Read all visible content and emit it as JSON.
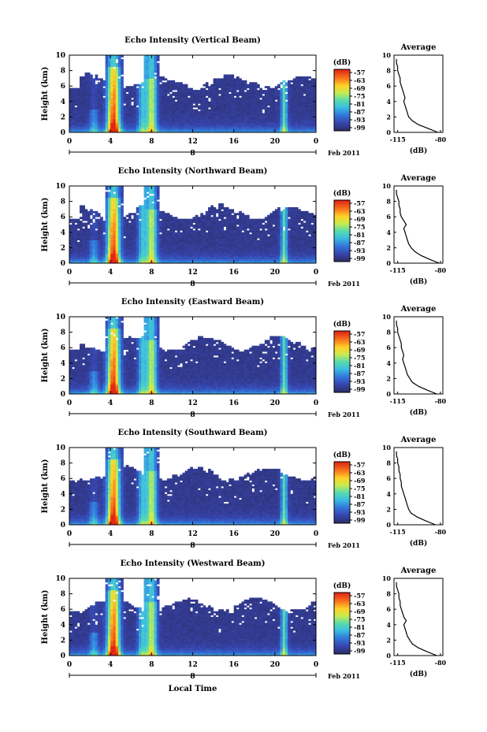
{
  "chart_data": [
    {
      "type": "heatmap",
      "title": "Echo Intensity (Vertical Beam)",
      "xlabel": "",
      "ylabel": "Height (km)",
      "x_ticks": [
        "0",
        "4",
        "8",
        "12",
        "16",
        "20",
        "0"
      ],
      "y_ticks": [
        "0",
        "2",
        "4",
        "6",
        "8",
        "10"
      ],
      "ylim": [
        0,
        10
      ],
      "date_row": [
        "8",
        "Feb 2011"
      ],
      "colorbar": {
        "unit": "(dB)",
        "ticks": [
          "-57",
          "-63",
          "-69",
          "-75",
          "-81",
          "-87",
          "-93",
          "-99"
        ]
      },
      "profile": {
        "title": "Average",
        "xlabel": "(dB)",
        "x_ticks": [
          "-115",
          "-80"
        ],
        "y_ticks": [
          "0",
          "2",
          "4",
          "6",
          "8",
          "10"
        ],
        "height_km": [
          0,
          0.5,
          1,
          1.5,
          2,
          2.5,
          3,
          3.5,
          4,
          4.5,
          5,
          5.5,
          6,
          6.5,
          7,
          7.5,
          8,
          8.5,
          9,
          9.5
        ],
        "values_db": [
          -82,
          -90,
          -98,
          -103,
          -106,
          -107,
          -108,
          -109,
          -110,
          -109,
          -110,
          -111,
          -112,
          -113,
          -113,
          -114,
          -115,
          -115,
          -116,
          -116
        ]
      }
    },
    {
      "type": "heatmap",
      "title": "Echo Intensity (Northward Beam)",
      "xlabel": "",
      "ylabel": "Height (km)",
      "x_ticks": [
        "0",
        "4",
        "8",
        "12",
        "16",
        "20",
        "0"
      ],
      "y_ticks": [
        "0",
        "2",
        "4",
        "6",
        "8",
        "10"
      ],
      "ylim": [
        0,
        10
      ],
      "date_row": [
        "8",
        "Feb 2011"
      ],
      "colorbar": {
        "unit": "(dB)",
        "ticks": [
          "-57",
          "-63",
          "-69",
          "-75",
          "-81",
          "-87",
          "-93",
          "-99"
        ]
      },
      "profile": {
        "title": "Average",
        "xlabel": "(dB)",
        "x_ticks": [
          "-115",
          "-80"
        ],
        "y_ticks": [
          "0",
          "2",
          "4",
          "6",
          "8",
          "10"
        ],
        "height_km": [
          0,
          0.5,
          1,
          1.5,
          2,
          2.5,
          3,
          3.5,
          4,
          4.5,
          5,
          5.5,
          6,
          6.5,
          7,
          7.5,
          8,
          8.5,
          9,
          9.5
        ],
        "values_db": [
          -81,
          -89,
          -96,
          -101,
          -104,
          -106,
          -107,
          -108,
          -109,
          -110,
          -108,
          -110,
          -112,
          -113,
          -113,
          -114,
          -114,
          -115,
          -116,
          -116
        ]
      }
    },
    {
      "type": "heatmap",
      "title": "Echo Intensity (Eastward Beam)",
      "xlabel": "",
      "ylabel": "Height (km)",
      "x_ticks": [
        "0",
        "4",
        "8",
        "12",
        "16",
        "20",
        "0"
      ],
      "y_ticks": [
        "0",
        "2",
        "4",
        "6",
        "8",
        "10"
      ],
      "ylim": [
        0,
        10
      ],
      "date_row": [
        "8",
        "Feb 2011"
      ],
      "colorbar": {
        "unit": "(dB)",
        "ticks": [
          "-57",
          "-63",
          "-69",
          "-75",
          "-81",
          "-87",
          "-93",
          "-99"
        ]
      },
      "profile": {
        "title": "Average",
        "xlabel": "(dB)",
        "x_ticks": [
          "-115",
          "-80"
        ],
        "y_ticks": [
          "0",
          "2",
          "4",
          "6",
          "8",
          "10"
        ],
        "height_km": [
          0,
          0.5,
          1,
          1.5,
          2,
          2.5,
          3,
          3.5,
          4,
          4.5,
          5,
          5.5,
          6,
          6.5,
          7,
          7.5,
          8,
          8.5,
          9,
          9.5
        ],
        "values_db": [
          -83,
          -91,
          -98,
          -103,
          -105,
          -107,
          -108,
          -109,
          -110,
          -111,
          -110,
          -111,
          -112,
          -112,
          -113,
          -114,
          -115,
          -115,
          -116,
          -116
        ]
      }
    },
    {
      "type": "heatmap",
      "title": "Echo Intensity (Southward Beam)",
      "xlabel": "",
      "ylabel": "Height (km)",
      "x_ticks": [
        "0",
        "4",
        "8",
        "12",
        "16",
        "20",
        "0"
      ],
      "y_ticks": [
        "0",
        "2",
        "4",
        "6",
        "8",
        "10"
      ],
      "ylim": [
        0,
        10
      ],
      "date_row": [
        "8",
        "Feb 2011"
      ],
      "colorbar": {
        "unit": "(dB)",
        "ticks": [
          "-57",
          "-63",
          "-69",
          "-75",
          "-81",
          "-87",
          "-93",
          "-99"
        ]
      },
      "profile": {
        "title": "Average",
        "xlabel": "(dB)",
        "x_ticks": [
          "-115",
          "-80"
        ],
        "y_ticks": [
          "0",
          "2",
          "4",
          "6",
          "8",
          "10"
        ],
        "height_km": [
          0,
          0.5,
          1,
          1.5,
          2,
          2.5,
          3,
          3.5,
          4,
          4.5,
          5,
          5.5,
          6,
          6.5,
          7,
          7.5,
          8,
          8.5,
          9,
          9.5
        ],
        "values_db": [
          -84,
          -92,
          -99,
          -104,
          -106,
          -107,
          -108,
          -109,
          -110,
          -111,
          -112,
          -112,
          -113,
          -113,
          -114,
          -114,
          -115,
          -115,
          -116,
          -116
        ]
      }
    },
    {
      "type": "heatmap",
      "title": "Echo Intensity (Westward Beam)",
      "xlabel": "Local Time",
      "ylabel": "Height (km)",
      "x_ticks": [
        "0",
        "4",
        "8",
        "12",
        "16",
        "20",
        "0"
      ],
      "y_ticks": [
        "0",
        "2",
        "4",
        "6",
        "8",
        "10"
      ],
      "ylim": [
        0,
        10
      ],
      "date_row": [
        "8",
        "Feb 2011"
      ],
      "colorbar": {
        "unit": "(dB)",
        "ticks": [
          "-57",
          "-63",
          "-69",
          "-75",
          "-81",
          "-87",
          "-93",
          "-99"
        ]
      },
      "profile": {
        "title": "Average",
        "xlabel": "(dB)",
        "x_ticks": [
          "-115",
          "-80"
        ],
        "y_ticks": [
          "0",
          "2",
          "4",
          "6",
          "8",
          "10"
        ],
        "height_km": [
          0,
          0.5,
          1,
          1.5,
          2,
          2.5,
          3,
          3.5,
          4,
          4.5,
          5,
          5.5,
          6,
          6.5,
          7,
          7.5,
          8,
          8.5,
          9,
          9.5
        ],
        "values_db": [
          -83,
          -91,
          -98,
          -103,
          -105,
          -107,
          -108,
          -109,
          -110,
          -108,
          -110,
          -111,
          -112,
          -113,
          -113,
          -114,
          -114,
          -115,
          -116,
          -116
        ]
      }
    }
  ],
  "colors": {
    "background": "#2d2f6e",
    "low": "#3b4fbf",
    "mid": "#3fd0d0",
    "high": "#ffe03a",
    "max": "#e83a1a"
  }
}
